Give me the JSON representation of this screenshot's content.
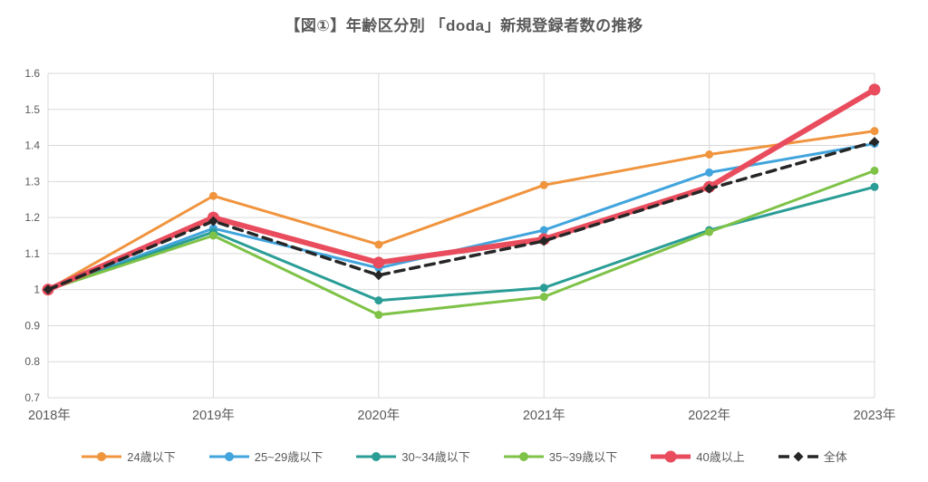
{
  "title": "【図①】年齢区分別 「doda」新規登録者数の推移",
  "chart_data": {
    "type": "line",
    "x_labels": [
      "2018年",
      "2019年",
      "2020年",
      "2021年",
      "2022年",
      "2023年"
    ],
    "y_ticks": [
      "0.7",
      "0.8",
      "0.9",
      "1",
      "1.1",
      "1.2",
      "1.3",
      "1.4",
      "1.5",
      "1.6"
    ],
    "ylim": [
      0.7,
      1.6
    ],
    "grid": true,
    "legend_position": "bottom",
    "colors": {
      "axis_text": "#595959",
      "gridline": "#D9D9D9",
      "background": "#FFFFFF"
    },
    "series": [
      {
        "name": "24歳以下",
        "color": "#F0943E",
        "values": [
          1.0,
          1.26,
          1.125,
          1.29,
          1.375,
          1.44
        ],
        "marker": "circle",
        "width": 3,
        "dashed": false
      },
      {
        "name": "25~29歳以下",
        "color": "#41A4DC",
        "values": [
          1.0,
          1.17,
          1.06,
          1.165,
          1.325,
          1.405
        ],
        "marker": "circle",
        "width": 3,
        "dashed": false
      },
      {
        "name": "30~34歳以下",
        "color": "#2A9D96",
        "values": [
          1.0,
          1.16,
          0.97,
          1.005,
          1.165,
          1.285
        ],
        "marker": "circle",
        "width": 3,
        "dashed": false
      },
      {
        "name": "35~39歳以下",
        "color": "#7EC247",
        "values": [
          1.0,
          1.15,
          0.93,
          0.98,
          1.16,
          1.33
        ],
        "marker": "circle",
        "width": 3,
        "dashed": false
      },
      {
        "name": "40歳以上",
        "color": "#E84C5D",
        "values": [
          1.0,
          1.2,
          1.075,
          1.14,
          1.285,
          1.555
        ],
        "marker": "circle",
        "width": 6,
        "dashed": false
      },
      {
        "name": "全体",
        "color": "#262626",
        "values": [
          1.0,
          1.19,
          1.04,
          1.135,
          1.28,
          1.41
        ],
        "marker": "diamond",
        "width": 3.5,
        "dashed": true
      }
    ]
  }
}
